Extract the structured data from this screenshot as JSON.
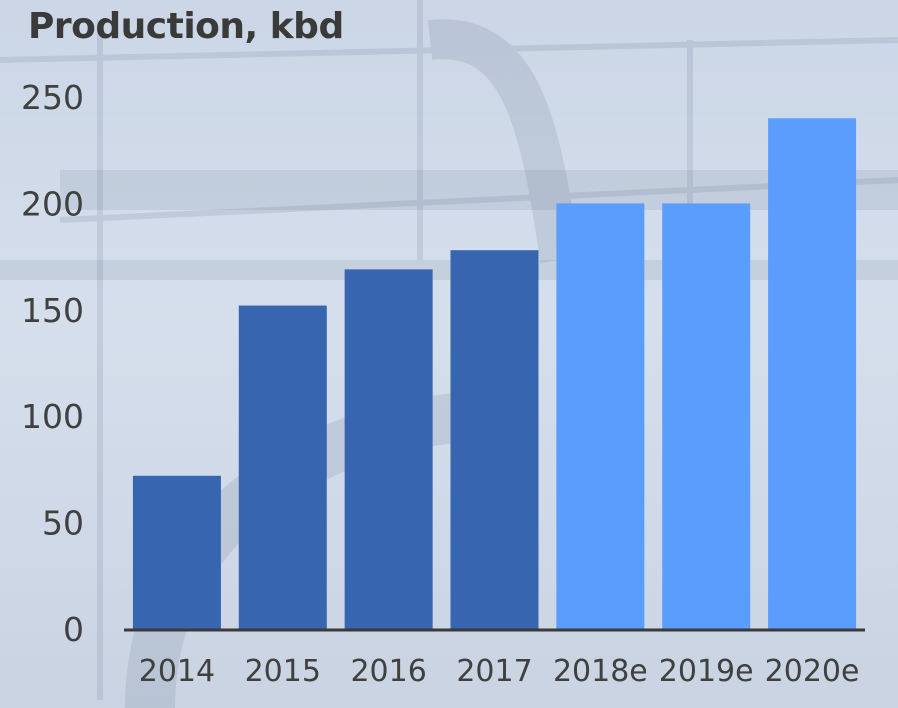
{
  "chart_data": {
    "type": "bar",
    "title": "Production, kbd",
    "categories": [
      "2014",
      "2015",
      "2016",
      "2017",
      "2018e",
      "2019e",
      "2020e"
    ],
    "values": [
      72,
      152,
      169,
      178,
      200,
      200,
      240
    ],
    "yticks": [
      "0",
      "50",
      "100",
      "150",
      "200",
      "250"
    ],
    "ylim": [
      0,
      250
    ],
    "colors": {
      "actual": "#3865b0",
      "estimate": "#5b9dfd",
      "axis": "#3a3a3a"
    },
    "estimate_flags": [
      false,
      false,
      false,
      false,
      true,
      true,
      true
    ],
    "grid": false,
    "legend": "none"
  }
}
